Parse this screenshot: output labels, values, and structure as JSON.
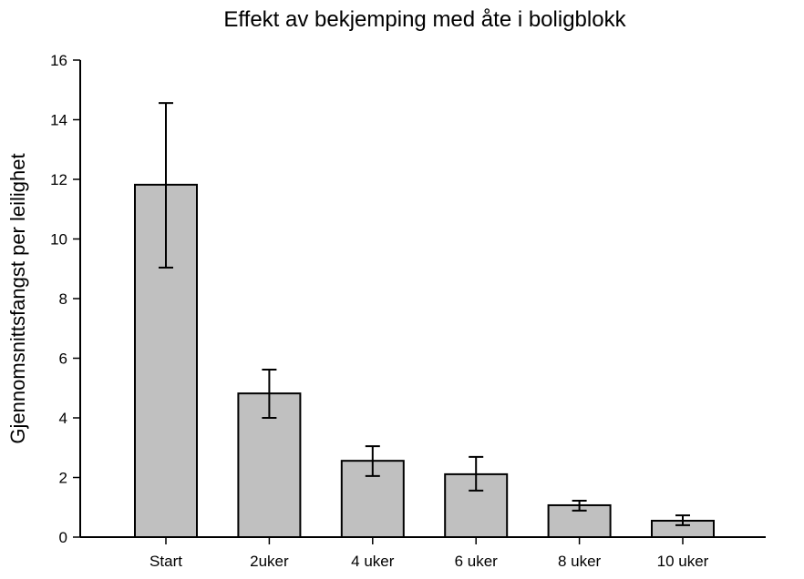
{
  "chart_data": {
    "type": "bar",
    "title": "Effekt av bekjemping med åte i boligblokk",
    "xlabel": "",
    "ylabel": "Gjennomsnittsfangst per leilighet",
    "ylim": [
      0,
      16
    ],
    "yticks": [
      0,
      2,
      4,
      6,
      8,
      10,
      12,
      14,
      16
    ],
    "categories": [
      "Start",
      "2uker",
      "4 uker",
      "6 uker",
      "8 uker",
      "10 uker"
    ],
    "values": [
      11.82,
      4.82,
      2.56,
      2.11,
      1.07,
      0.55
    ],
    "error_high": [
      14.56,
      5.62,
      3.05,
      2.69,
      1.22,
      0.73
    ],
    "error_low": [
      9.04,
      4.0,
      2.05,
      1.56,
      0.89,
      0.4
    ],
    "bar_color": "#c0c0c0",
    "grid": false
  }
}
